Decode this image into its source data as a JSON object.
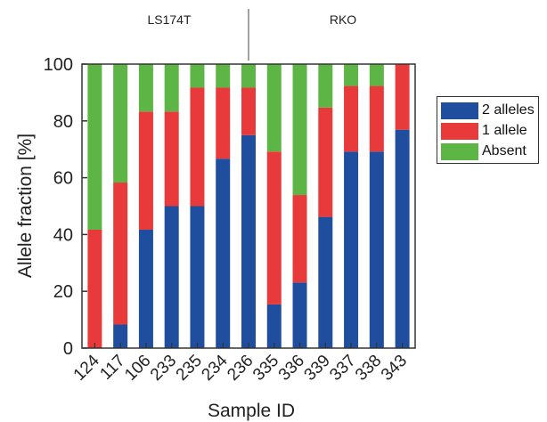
{
  "chart_data": {
    "type": "bar",
    "stacked": true,
    "categories": [
      "124",
      "117",
      "106",
      "233",
      "235",
      "234",
      "236",
      "335",
      "336",
      "339",
      "337",
      "338",
      "343"
    ],
    "groups": [
      {
        "label": "LS174T",
        "categories": [
          "124",
          "117",
          "106",
          "233",
          "235",
          "234",
          "236"
        ]
      },
      {
        "label": "RKO",
        "categories": [
          "335",
          "336",
          "339",
          "337",
          "338",
          "343"
        ]
      }
    ],
    "series": [
      {
        "name": "2 alleles",
        "color": "#1f4e9e",
        "values": [
          0,
          8.3,
          41.7,
          50,
          50,
          66.7,
          75,
          15.4,
          23.1,
          46.2,
          69.2,
          69.2,
          76.9
        ]
      },
      {
        "name": "1 allele",
        "color": "#e83a3a",
        "values": [
          41.7,
          50,
          41.6,
          33.3,
          41.7,
          25,
          16.7,
          53.8,
          30.8,
          38.5,
          23.1,
          23.1,
          23.1
        ]
      },
      {
        "name": "Absent",
        "color": "#5cb545",
        "values": [
          58.3,
          41.7,
          16.7,
          16.7,
          8.3,
          8.3,
          8.3,
          30.8,
          46.1,
          15.3,
          7.7,
          7.7,
          0
        ]
      }
    ],
    "xlabel": "Sample ID",
    "ylabel": "Allele fraction [%]",
    "ylim": [
      0,
      100
    ],
    "yticks": [
      0,
      20,
      40,
      60,
      80,
      100
    ],
    "legend_position": "right",
    "grid": false
  }
}
